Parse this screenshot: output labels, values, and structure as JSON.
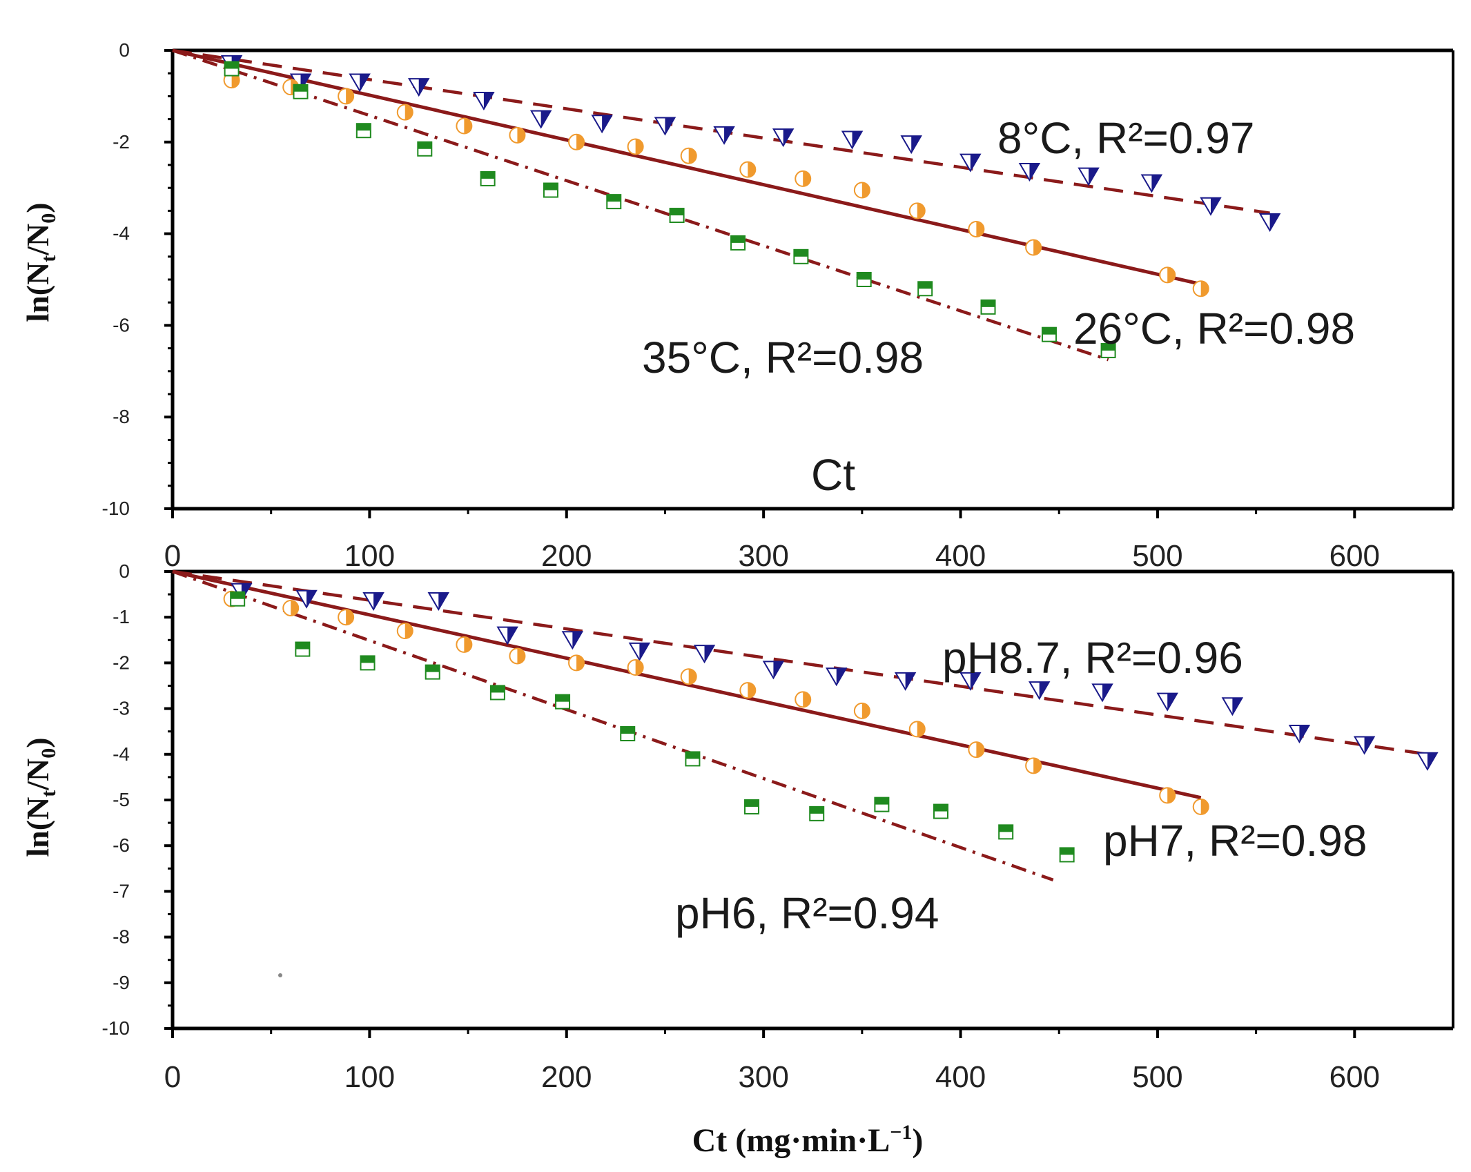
{
  "colors": {
    "fit_line": "#8b1a1a",
    "marker_8C": "#1a1a8a",
    "marker_26C": "#f09a2e",
    "marker_35C": "#1f8a1f",
    "axis": "#000000"
  },
  "chart_data": [
    {
      "type": "scatter",
      "panel": "top",
      "xlim": [
        0,
        650
      ],
      "ylim": [
        -10,
        0
      ],
      "xticks": [
        "0",
        "100",
        "200",
        "300",
        "400",
        "500",
        "600"
      ],
      "yticks": [
        "0",
        "-2",
        "-4",
        "-6",
        "-8",
        "-10"
      ],
      "xticks_values": [
        0,
        100,
        200,
        300,
        400,
        500,
        600
      ],
      "yticks_values": [
        0,
        -2,
        -4,
        -6,
        -8,
        -10
      ],
      "xlabel": "Ct",
      "ylabel": "ln(N",
      "ylabel_sub1": "t",
      "ylabel_mid": "/N",
      "ylabel_sub2": "0",
      "ylabel_end": ")",
      "annotations": [
        {
          "text": "8°C, R²=0.97",
          "x": 425,
          "y": -1.95
        },
        {
          "text": "26°C, R²=0.98",
          "x": 460,
          "y": -6.2
        },
        {
          "text": "35°C, R²=0.98",
          "x": 240,
          "y": -6.9
        }
      ],
      "series": [
        {
          "name": "8°C",
          "marker": "triangle",
          "color_key": "marker_8C",
          "line_style": "dashed",
          "fit": [
            [
              0,
              0
            ],
            [
              557,
              -3.55
            ]
          ],
          "x": [
            30,
            65,
            95,
            125,
            158,
            187,
            218,
            250,
            280,
            310,
            345,
            375,
            405,
            435,
            465,
            497,
            527,
            557
          ],
          "y": [
            -0.3,
            -0.7,
            -0.7,
            -0.8,
            -1.1,
            -1.5,
            -1.6,
            -1.65,
            -1.85,
            -1.9,
            -1.95,
            -2.05,
            -2.45,
            -2.65,
            -2.75,
            -2.9,
            -3.4,
            -3.75
          ]
        },
        {
          "name": "26°C",
          "marker": "circle",
          "color_key": "marker_26C",
          "line_style": "solid",
          "fit": [
            [
              0,
              0
            ],
            [
              522,
              -5.1
            ]
          ],
          "x": [
            30,
            60,
            88,
            118,
            148,
            175,
            205,
            235,
            262,
            292,
            320,
            350,
            378,
            408,
            437,
            505,
            522
          ],
          "y": [
            -0.65,
            -0.8,
            -1.0,
            -1.35,
            -1.65,
            -1.85,
            -2.0,
            -2.1,
            -2.3,
            -2.6,
            -2.8,
            -3.05,
            -3.5,
            -3.9,
            -4.3,
            -4.9,
            -5.2
          ]
        },
        {
          "name": "35°C",
          "marker": "square",
          "color_key": "marker_35C",
          "line_style": "dashdot",
          "fit": [
            [
              0,
              0
            ],
            [
              475,
              -6.75
            ]
          ],
          "x": [
            30,
            65,
            97,
            128,
            160,
            192,
            224,
            256,
            287,
            319,
            351,
            382,
            414,
            445,
            475
          ],
          "y": [
            -0.4,
            -0.9,
            -1.75,
            -2.15,
            -2.8,
            -3.05,
            -3.3,
            -3.6,
            -4.2,
            -4.5,
            -5.0,
            -5.2,
            -5.6,
            -6.2,
            -6.55
          ]
        }
      ]
    },
    {
      "type": "scatter",
      "panel": "bottom",
      "xlim": [
        0,
        650
      ],
      "ylim": [
        -10,
        0
      ],
      "xticks": [
        "0",
        "100",
        "200",
        "300",
        "400",
        "500",
        "600"
      ],
      "yticks": [
        "0",
        "-1",
        "-2",
        "-3",
        "-4",
        "-5",
        "-6",
        "-7",
        "-8",
        "-9",
        "-10"
      ],
      "xticks_values": [
        0,
        100,
        200,
        300,
        400,
        500,
        600
      ],
      "yticks_values": [
        0,
        -1,
        -2,
        -3,
        -4,
        -5,
        -6,
        -7,
        -8,
        -9,
        -10
      ],
      "xlabel": "Ct (mg·min·L",
      "xlabel_sup": "−1",
      "xlabel_end": ")",
      "ylabel": "ln(N",
      "ylabel_sub1": "t",
      "ylabel_mid": "/N",
      "ylabel_sub2": "0",
      "ylabel_end": ")",
      "annotations": [
        {
          "text": "pH8.7, R²=0.96",
          "x": 393,
          "y": -2.2
        },
        {
          "text": "pH7, R²=0.98",
          "x": 472,
          "y": -6.15
        },
        {
          "text": "pH6, R²=0.94",
          "x": 258,
          "y": -8.1
        }
      ],
      "series": [
        {
          "name": "pH8.7",
          "marker": "triangle",
          "color_key": "marker_8C",
          "line_style": "dashed",
          "fit": [
            [
              0,
              0
            ],
            [
              637,
              -4.0
            ]
          ],
          "x": [
            35,
            68,
            102,
            135,
            170,
            203,
            237,
            270,
            305,
            337,
            372,
            405,
            440,
            472,
            505,
            538,
            572,
            605,
            637
          ],
          "y": [
            -0.45,
            -0.6,
            -0.65,
            -0.65,
            -1.4,
            -1.5,
            -1.75,
            -1.8,
            -2.15,
            -2.3,
            -2.4,
            -2.4,
            -2.6,
            -2.65,
            -2.85,
            -2.95,
            -3.55,
            -3.8,
            -4.15
          ]
        },
        {
          "name": "pH7",
          "marker": "circle",
          "color_key": "marker_26C",
          "line_style": "solid",
          "fit": [
            [
              0,
              0
            ],
            [
              522,
              -4.95
            ]
          ],
          "x": [
            30,
            60,
            88,
            118,
            148,
            175,
            205,
            235,
            262,
            292,
            320,
            350,
            378,
            408,
            437,
            505,
            522
          ],
          "y": [
            -0.6,
            -0.8,
            -1.0,
            -1.3,
            -1.6,
            -1.85,
            -2.0,
            -2.1,
            -2.3,
            -2.6,
            -2.8,
            -3.05,
            -3.45,
            -3.9,
            -4.25,
            -4.9,
            -5.15
          ]
        },
        {
          "name": "pH6",
          "marker": "square",
          "color_key": "marker_35C",
          "line_style": "dashdot",
          "fit": [
            [
              0,
              0
            ],
            [
              447,
              -6.75
            ]
          ],
          "x": [
            33,
            66,
            99,
            132,
            165,
            198,
            231,
            264,
            294,
            327,
            360,
            390,
            423,
            454
          ],
          "y": [
            -0.6,
            -1.7,
            -2.0,
            -2.2,
            -2.65,
            -2.85,
            -3.55,
            -4.1,
            -5.15,
            -5.3,
            -5.1,
            -5.25,
            -5.7,
            -6.2
          ]
        }
      ]
    }
  ]
}
